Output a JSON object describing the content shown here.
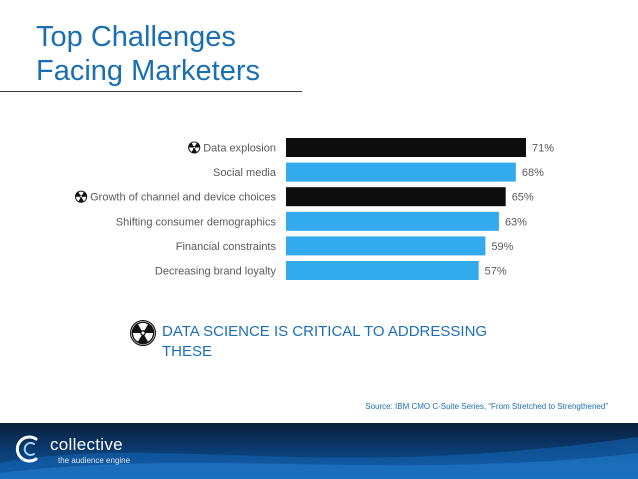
{
  "title_lines": [
    "Top Challenges",
    "Facing Marketers"
  ],
  "colors": {
    "title": "#1a6fb3",
    "bar_highlight": "#0d0d0d",
    "bar_default": "#33aaed",
    "label": "#5a5a5a",
    "value": "#5a5a5a"
  },
  "chart_data": {
    "type": "bar",
    "orientation": "horizontal",
    "categories": [
      "Data explosion",
      "Social media",
      "Growth of channel and device choices",
      "Shifting consumer demographics",
      "Financial constraints",
      "Decreasing brand loyalty"
    ],
    "values": [
      71,
      68,
      65,
      63,
      59,
      57
    ],
    "value_labels": [
      "71%",
      "68%",
      "65%",
      "63%",
      "59%",
      "57%"
    ],
    "highlighted": [
      true,
      false,
      true,
      false,
      false,
      false
    ],
    "marker_icon": "radiation-icon",
    "xlim": [
      0,
      100
    ],
    "grid": false,
    "legend": "none"
  },
  "callout": {
    "icon": "radiation-icon",
    "text": "DATA SCIENCE IS CRITICAL TO ADDRESSING THESE"
  },
  "source": "Source: IBM CMO C-Suite Series, “From Stretched to Strengthened”",
  "footer": {
    "logo_icon": "collective-logo-icon",
    "brand": "collective",
    "tagline": "the audience engine"
  }
}
